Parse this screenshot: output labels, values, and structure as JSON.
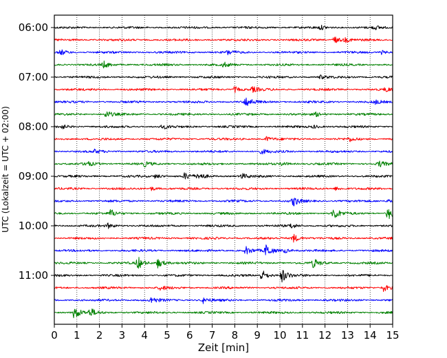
{
  "chart_data": {
    "type": "line",
    "title": "",
    "xlabel": "Zeit  [min]",
    "ylabel": "UTC (Lokalzeit = UTC + 02:00)",
    "xlim": [
      0,
      15
    ],
    "x_ticks": [
      "0",
      "1",
      "2",
      "3",
      "4",
      "5",
      "6",
      "7",
      "8",
      "9",
      "10",
      "11",
      "12",
      "13",
      "14",
      "15"
    ],
    "y_ticks": [
      "06:00",
      "07:00",
      "08:00",
      "09:00",
      "10:00",
      "11:00"
    ],
    "grid": "vertical-dotted",
    "trace_colors": [
      "#000000",
      "#ff0000",
      "#0000ff",
      "#008000"
    ],
    "series": [
      {
        "values": [
          [
            11.8,
            0.3
          ],
          [
            14.2,
            0.25
          ]
        ]
      },
      {
        "values": [
          [
            12.4,
            0.6
          ],
          [
            12.9,
            0.3
          ]
        ]
      },
      {
        "values": [
          [
            0.3,
            0.4
          ],
          [
            7.7,
            0.35
          ],
          [
            14.5,
            0.3
          ]
        ]
      },
      {
        "values": [
          [
            2.2,
            0.45
          ],
          [
            7.5,
            0.35
          ]
        ]
      },
      {
        "values": [
          [
            11.8,
            0.25
          ]
        ]
      },
      {
        "values": [
          [
            8.0,
            0.45
          ],
          [
            8.8,
            0.4
          ],
          [
            14.7,
            0.3
          ]
        ]
      },
      {
        "values": [
          [
            8.5,
            0.8
          ],
          [
            14.2,
            0.3
          ]
        ]
      },
      {
        "values": [
          [
            2.3,
            0.55
          ],
          [
            11.6,
            0.3
          ]
        ]
      },
      {
        "values": [
          [
            0.3,
            0.35
          ],
          [
            4.8,
            0.3
          ],
          [
            11.5,
            0.25
          ]
        ]
      },
      {
        "values": [
          [
            9.4,
            0.35
          ],
          [
            13.1,
            0.3
          ]
        ]
      },
      {
        "values": [
          [
            1.8,
            0.25
          ],
          [
            9.2,
            0.35
          ]
        ]
      },
      {
        "values": [
          [
            1.4,
            0.45
          ],
          [
            4.0,
            0.35
          ],
          [
            10.1,
            0.3
          ],
          [
            14.4,
            0.45
          ]
        ]
      },
      {
        "values": [
          [
            4.5,
            0.35
          ],
          [
            5.8,
            0.55
          ],
          [
            6.4,
            0.5
          ],
          [
            8.3,
            0.45
          ]
        ]
      },
      {
        "values": [
          [
            4.3,
            0.3
          ],
          [
            12.5,
            0.3
          ]
        ]
      },
      {
        "values": [
          [
            10.6,
            0.75
          ],
          [
            14.8,
            0.3
          ]
        ]
      },
      {
        "values": [
          [
            2.5,
            0.55
          ],
          [
            12.4,
            1.0
          ],
          [
            14.8,
            1.05
          ]
        ]
      },
      {
        "values": [
          [
            2.4,
            0.35
          ],
          [
            10.5,
            0.4
          ]
        ]
      },
      {
        "values": [
          [
            10.6,
            0.7
          ]
        ]
      },
      {
        "values": [
          [
            8.5,
            0.6
          ],
          [
            9.4,
            1.0
          ],
          [
            10.2,
            0.35
          ]
        ]
      },
      {
        "values": [
          [
            3.7,
            1.0
          ],
          [
            4.6,
            0.75
          ],
          [
            11.5,
            0.7
          ]
        ]
      },
      {
        "values": [
          [
            9.2,
            0.9
          ],
          [
            10.1,
            1.05
          ]
        ]
      },
      {
        "values": [
          [
            4.7,
            0.35
          ],
          [
            14.6,
            0.6
          ]
        ]
      },
      {
        "values": [
          [
            4.3,
            0.5
          ],
          [
            6.6,
            0.45
          ]
        ]
      },
      {
        "values": [
          [
            0.9,
            1.05
          ],
          [
            1.6,
            0.6
          ]
        ]
      }
    ]
  }
}
